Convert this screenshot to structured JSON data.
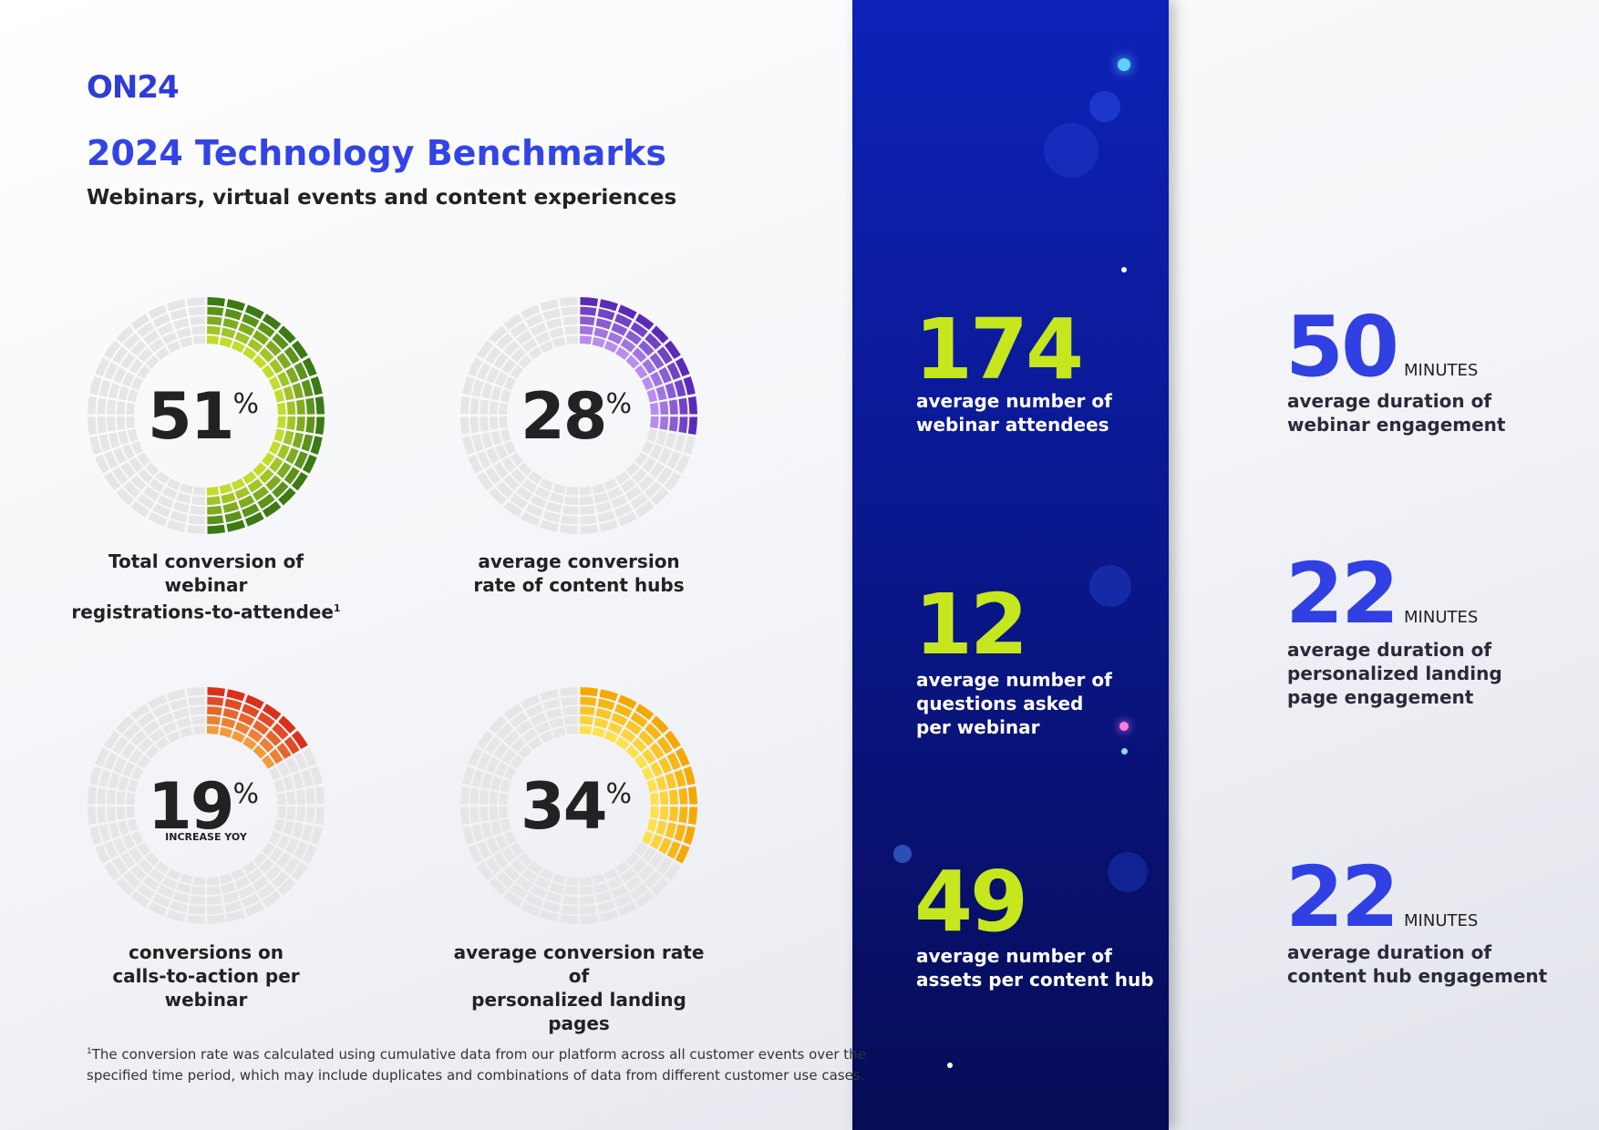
{
  "header": {
    "logo": "ON24",
    "title": "2024 Technology Benchmarks",
    "subtitle": "Webinars, virtual events and content experiences"
  },
  "gauges": [
    {
      "value": 51,
      "unit": "%",
      "colors": [
        "#c3dc2c",
        "#3b7a14"
      ],
      "label_lines": [
        "Total conversion of webinar",
        "registrations-to-attendee"
      ],
      "footnote_ref": "1"
    },
    {
      "value": 28,
      "unit": "%",
      "colors": [
        "#b98cf0",
        "#5a2bb8"
      ],
      "label_lines": [
        "average conversion",
        "rate of content hubs"
      ]
    },
    {
      "value": 19,
      "unit": "%",
      "note": "INCREASE YOY",
      "colors": [
        "#f59a3a",
        "#d9301c"
      ],
      "label_lines": [
        "conversions on",
        "calls-to-action per webinar"
      ]
    },
    {
      "value": 34,
      "unit": "%",
      "colors": [
        "#ffe14a",
        "#f5a800"
      ],
      "label_lines": [
        "average conversion rate of",
        "personalized landing pages"
      ]
    }
  ],
  "panel_stats": [
    {
      "value": 174,
      "label_lines": [
        "average number of",
        "webinar attendees"
      ]
    },
    {
      "value": 12,
      "label_lines": [
        "average number of",
        "questions asked",
        "per webinar"
      ]
    },
    {
      "value": 49,
      "label_lines": [
        "average number of",
        "assets per content hub"
      ]
    }
  ],
  "duration_stats": [
    {
      "value": 50,
      "unit": "MINUTES",
      "label_lines": [
        "average duration of",
        "webinar engagement"
      ]
    },
    {
      "value": 22,
      "unit": "MINUTES",
      "label_lines": [
        "average duration of",
        "personalized landing",
        "page engagement"
      ]
    },
    {
      "value": 22,
      "unit": "MINUTES",
      "label_lines": [
        "average duration of",
        "content hub engagement"
      ]
    }
  ],
  "footnote": {
    "mark": "1",
    "lines": [
      "The conversion rate was calculated using cumulative data from our platform across all customer events over the",
      "specified time period, which may include duplicates and combinations of data from different customer use cases."
    ]
  }
}
